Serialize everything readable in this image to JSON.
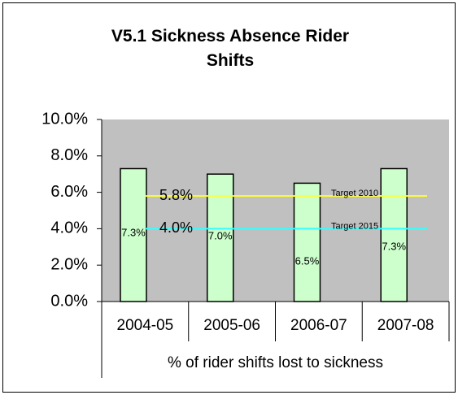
{
  "chart_data": {
    "type": "bar",
    "title": "V5.1 Sickness Absence Rider Shifts",
    "categories": [
      "2004-05",
      "2005-06",
      "2006-07",
      "2007-08"
    ],
    "values": [
      7.3,
      7.0,
      6.5,
      7.3
    ],
    "value_labels": [
      "7.3%",
      "7.0%",
      "6.5%",
      "7.3%"
    ],
    "color": "#ccffcc",
    "xlabel": "% of rider shifts lost to sickness",
    "ylim": [
      0,
      10
    ],
    "yticks": [
      {
        "value": 0,
        "label": "0.0%"
      },
      {
        "value": 2,
        "label": "2.0%"
      },
      {
        "value": 4,
        "label": "4.0%"
      },
      {
        "value": 6,
        "label": "6.0%"
      },
      {
        "value": 8,
        "label": "8.0%"
      },
      {
        "value": 10,
        "label": "10.0%"
      }
    ],
    "targets": [
      {
        "name": "Target 2010",
        "value": 5.8,
        "label": "5.8%",
        "color": "#ffff33"
      },
      {
        "name": "Target 2015",
        "value": 4.0,
        "label": "4.0%",
        "color": "#33ffff"
      }
    ],
    "plot_background": "#c0c0c0"
  }
}
